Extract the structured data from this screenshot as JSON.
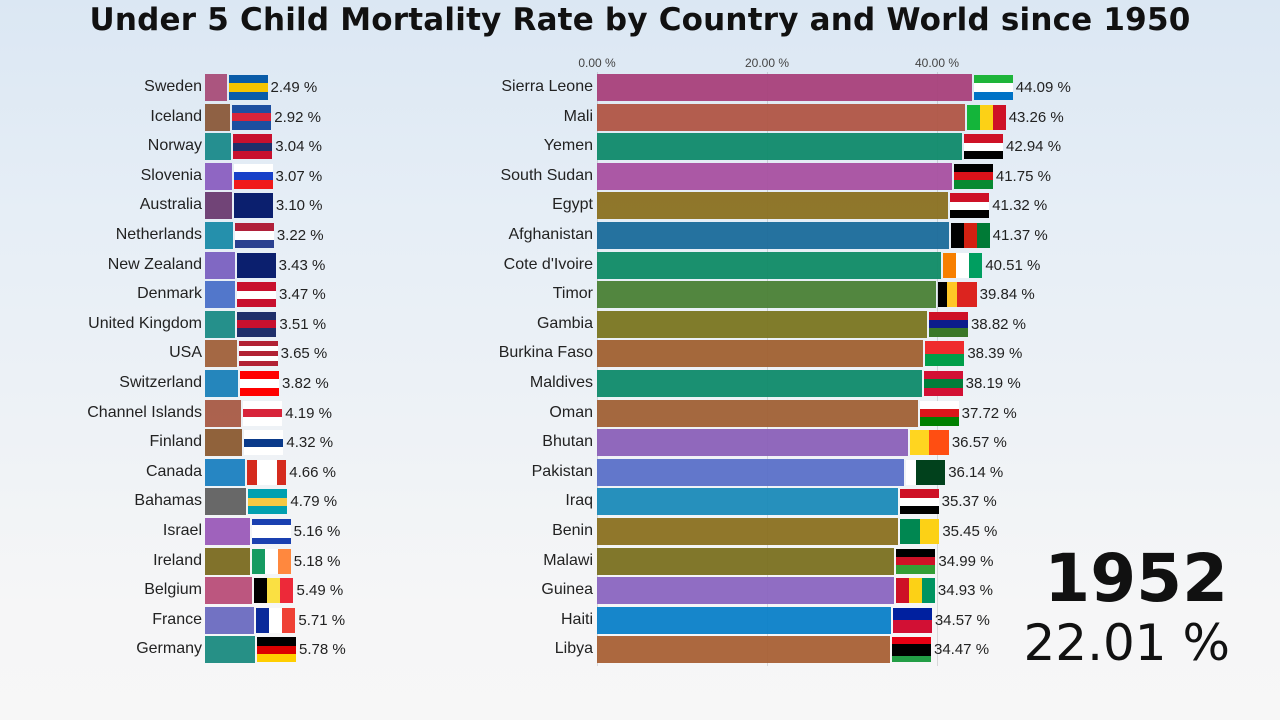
{
  "title": "Under 5 Child Mortality Rate by Country and World since 1950",
  "year": "1952",
  "world_value": "22.01 %",
  "chart_data": [
    {
      "type": "bar",
      "orientation": "horizontal",
      "unit": "%",
      "bars": [
        {
          "name": "Sweden",
          "value": 2.49,
          "label": "2.49 %",
          "color": "#a84d78",
          "flag": {
            "dir": "h",
            "stripes": [
              "#0a5ca8",
              "#f5c400",
              "#0a5ca8"
            ]
          }
        },
        {
          "name": "Iceland",
          "value": 2.92,
          "label": "2.92 %",
          "color": "#8a5a3a",
          "flag": {
            "dir": "h",
            "stripes": [
              "#1d4fa0",
              "#d8243a",
              "#1d4fa0"
            ]
          }
        },
        {
          "name": "Norway",
          "value": 3.04,
          "label": "3.04 %",
          "color": "#1a8a8a",
          "flag": {
            "dir": "h",
            "stripes": [
              "#c8102e",
              "#1f2f6a",
              "#c8102e"
            ]
          }
        },
        {
          "name": "Slovenia",
          "value": 3.07,
          "label": "3.07 %",
          "color": "#8a5fc0",
          "flag": {
            "dir": "h",
            "stripes": [
              "#ffffff",
              "#1740c8",
              "#f01a1a"
            ]
          }
        },
        {
          "name": "Australia",
          "value": 3.1,
          "label": "3.10 %",
          "color": "#6a3a70",
          "flag": {
            "dir": "h",
            "stripes": [
              "#0b1f6e",
              "#0b1f6e"
            ]
          }
        },
        {
          "name": "Netherlands",
          "value": 3.22,
          "label": "3.22 %",
          "color": "#1a8aa8",
          "flag": {
            "dir": "h",
            "stripes": [
              "#b0203a",
              "#ffffff",
              "#2a4090"
            ]
          }
        },
        {
          "name": "New Zealand",
          "value": 3.43,
          "label": "3.43 %",
          "color": "#7a60c0",
          "flag": {
            "dir": "h",
            "stripes": [
              "#0b1f6e",
              "#0b1f6e"
            ]
          }
        },
        {
          "name": "Denmark",
          "value": 3.47,
          "label": "3.47 %",
          "color": "#4a70c8",
          "flag": {
            "dir": "h",
            "stripes": [
              "#c8102e",
              "#ffffff",
              "#c8102e"
            ]
          }
        },
        {
          "name": "United Kingdom",
          "value": 3.51,
          "label": "3.51 %",
          "color": "#1a8a85",
          "flag": {
            "dir": "h",
            "stripes": [
              "#1f2f6a",
              "#c8102e",
              "#1f2f6a"
            ]
          }
        },
        {
          "name": "USA",
          "value": 3.65,
          "label": "3.65 %",
          "color": "#a0603a",
          "flag": {
            "dir": "h",
            "stripes": [
              "#b22234",
              "#ffffff",
              "#b22234",
              "#ffffff",
              "#b22234"
            ]
          }
        },
        {
          "name": "Switzerland",
          "value": 3.82,
          "label": "3.82 %",
          "color": "#1a80b8",
          "flag": {
            "dir": "h",
            "stripes": [
              "#ff0000",
              "#ffffff",
              "#ff0000"
            ]
          }
        },
        {
          "name": "Channel Islands",
          "value": 4.19,
          "label": "4.19 %",
          "color": "#a85a45",
          "flag": {
            "dir": "h",
            "stripes": [
              "#ffffff",
              "#d8243a",
              "#ffffff"
            ]
          }
        },
        {
          "name": "Finland",
          "value": 4.32,
          "label": "4.32 %",
          "color": "#8a5a30",
          "flag": {
            "dir": "h",
            "stripes": [
              "#ffffff",
              "#0a3a8a",
              "#ffffff"
            ]
          }
        },
        {
          "name": "Canada",
          "value": 4.66,
          "label": "4.66 %",
          "color": "#1a80c0",
          "flag": {
            "dir": "v",
            "stripes": [
              "#d52b1e",
              "#ffffff",
              "#ffffff",
              "#d52b1e"
            ]
          }
        },
        {
          "name": "Bahamas",
          "value": 4.79,
          "label": "4.79 %",
          "color": "#606060",
          "flag": {
            "dir": "h",
            "stripes": [
              "#00a0b0",
              "#f5c843",
              "#00a0b0"
            ]
          }
        },
        {
          "name": "Israel",
          "value": 5.16,
          "label": "5.16 %",
          "color": "#9a5ab8",
          "flag": {
            "dir": "h",
            "stripes": [
              "#1a40b0",
              "#ffffff",
              "#ffffff",
              "#1a40b0"
            ]
          }
        },
        {
          "name": "Ireland",
          "value": 5.18,
          "label": "5.18 %",
          "color": "#7a6a20",
          "flag": {
            "dir": "v",
            "stripes": [
              "#169b62",
              "#ffffff",
              "#ff883e"
            ]
          }
        },
        {
          "name": "Belgium",
          "value": 5.49,
          "label": "5.49 %",
          "color": "#b84d78",
          "flag": {
            "dir": "v",
            "stripes": [
              "#000000",
              "#fae042",
              "#ed2939"
            ]
          }
        },
        {
          "name": "France",
          "value": 5.71,
          "label": "5.71 %",
          "color": "#6a6ac0",
          "flag": {
            "dir": "v",
            "stripes": [
              "#0a2a9a",
              "#ffffff",
              "#ef4135"
            ]
          }
        },
        {
          "name": "Germany",
          "value": 5.78,
          "label": "5.78 %",
          "color": "#1a8a80",
          "flag": {
            "dir": "h",
            "stripes": [
              "#000000",
              "#dd0000",
              "#ffce00"
            ]
          }
        }
      ]
    },
    {
      "type": "bar",
      "orientation": "horizontal",
      "unit": "%",
      "xlim": [
        0,
        45
      ],
      "ticks": [
        "0.00 %",
        "20.00 %",
        "40.00 %"
      ],
      "tick_values": [
        0,
        20,
        40
      ],
      "grid": true,
      "bars": [
        {
          "name": "Sierra Leone",
          "value": 44.09,
          "label": "44.09 %",
          "color": "#a8407a",
          "flag": {
            "dir": "h",
            "stripes": [
              "#1eb53a",
              "#ffffff",
              "#0072c6"
            ]
          }
        },
        {
          "name": "Mali",
          "value": 43.26,
          "label": "43.26 %",
          "color": "#b05545",
          "flag": {
            "dir": "v",
            "stripes": [
              "#14b53a",
              "#fcd116",
              "#ce1126"
            ]
          }
        },
        {
          "name": "Yemen",
          "value": 42.94,
          "label": "42.94 %",
          "color": "#0f8a6a",
          "flag": {
            "dir": "h",
            "stripes": [
              "#ce1126",
              "#ffffff",
              "#000000"
            ]
          }
        },
        {
          "name": "South Sudan",
          "value": 41.75,
          "label": "41.75 %",
          "color": "#a850a0",
          "flag": {
            "dir": "h",
            "stripes": [
              "#000000",
              "#da121a",
              "#078930"
            ]
          }
        },
        {
          "name": "Egypt",
          "value": 41.32,
          "label": "41.32 %",
          "color": "#8a7020",
          "flag": {
            "dir": "h",
            "stripes": [
              "#ce1126",
              "#ffffff",
              "#000000"
            ]
          }
        },
        {
          "name": "Afghanistan",
          "value": 41.37,
          "label": "41.37 %",
          "color": "#1a6a9a",
          "flag": {
            "dir": "v",
            "stripes": [
              "#000000",
              "#d32011",
              "#007a36"
            ]
          }
        },
        {
          "name": "Cote d'Ivoire",
          "value": 40.51,
          "label": "40.51 %",
          "color": "#0f8a65",
          "flag": {
            "dir": "v",
            "stripes": [
              "#f77f00",
              "#ffffff",
              "#009e60"
            ]
          }
        },
        {
          "name": "Timor",
          "value": 39.84,
          "label": "39.84 %",
          "color": "#4a8035",
          "flag": {
            "dir": "v",
            "stripes": [
              "#000000",
              "#ffc726",
              "#dc241f",
              "#dc241f"
            ]
          }
        },
        {
          "name": "Gambia",
          "value": 38.82,
          "label": "38.82 %",
          "color": "#7a7520",
          "flag": {
            "dir": "h",
            "stripes": [
              "#ce1126",
              "#0c1c8c",
              "#3a7728"
            ]
          }
        },
        {
          "name": "Burkina Faso",
          "value": 38.39,
          "label": "38.39 %",
          "color": "#a06030",
          "flag": {
            "dir": "h",
            "stripes": [
              "#ef2b2d",
              "#009e49"
            ]
          }
        },
        {
          "name": "Maldives",
          "value": 38.19,
          "label": "38.19 %",
          "color": "#0f8a6a",
          "flag": {
            "dir": "h",
            "stripes": [
              "#d21034",
              "#007e3a",
              "#d21034"
            ]
          }
        },
        {
          "name": "Oman",
          "value": 37.72,
          "label": "37.72 %",
          "color": "#a06035",
          "flag": {
            "dir": "h",
            "stripes": [
              "#ffffff",
              "#db161b",
              "#008000"
            ]
          }
        },
        {
          "name": "Bhutan",
          "value": 36.57,
          "label": "36.57 %",
          "color": "#8a60b8",
          "flag": {
            "dir": "v",
            "stripes": [
              "#ffd520",
              "#ff4e12"
            ]
          }
        },
        {
          "name": "Pakistan",
          "value": 36.14,
          "label": "36.14 %",
          "color": "#5a70c8",
          "flag": {
            "dir": "v",
            "stripes": [
              "#ffffff",
              "#01411c",
              "#01411c",
              "#01411c"
            ]
          }
        },
        {
          "name": "Iraq",
          "value": 35.37,
          "label": "35.37 %",
          "color": "#1a8ab8",
          "flag": {
            "dir": "h",
            "stripes": [
              "#ce1126",
              "#ffffff",
              "#000000"
            ]
          }
        },
        {
          "name": "Benin",
          "value": 35.45,
          "label": "35.45 %",
          "color": "#8a7020",
          "flag": {
            "dir": "v",
            "stripes": [
              "#008751",
              "#fcd116"
            ]
          }
        },
        {
          "name": "Malawi",
          "value": 34.99,
          "label": "34.99 %",
          "color": "#7a7020",
          "flag": {
            "dir": "h",
            "stripes": [
              "#000000",
              "#ce1126",
              "#339e35"
            ]
          }
        },
        {
          "name": "Guinea",
          "value": 34.93,
          "label": "34.93 %",
          "color": "#8a65c0",
          "flag": {
            "dir": "v",
            "stripes": [
              "#ce1126",
              "#fcd116",
              "#009460"
            ]
          }
        },
        {
          "name": "Haiti",
          "value": 34.57,
          "label": "34.57 %",
          "color": "#0a80c8",
          "flag": {
            "dir": "h",
            "stripes": [
              "#00209f",
              "#d21034"
            ]
          }
        },
        {
          "name": "Libya",
          "value": 34.47,
          "label": "34.47 %",
          "color": "#a86035",
          "flag": {
            "dir": "h",
            "stripes": [
              "#e70013",
              "#000000",
              "#000000",
              "#239e46"
            ]
          }
        }
      ]
    }
  ]
}
